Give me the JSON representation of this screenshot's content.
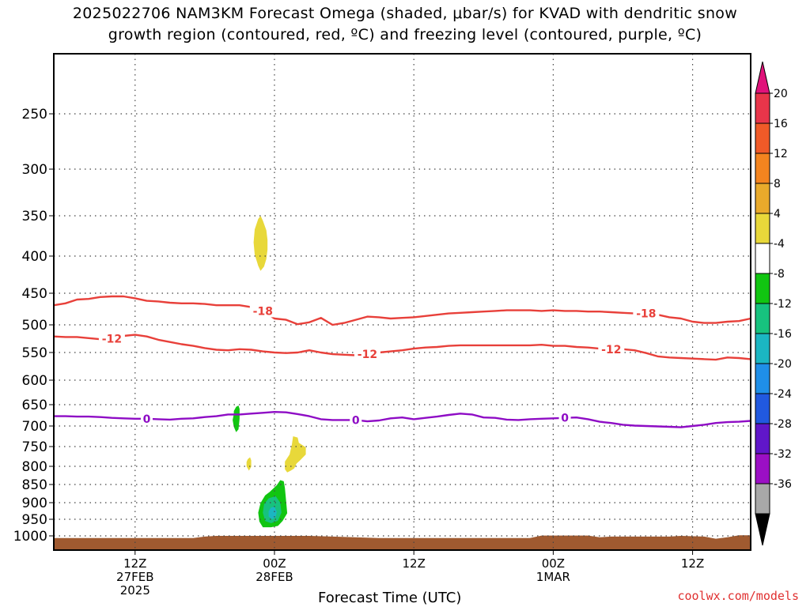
{
  "header": {
    "line1": "2025022706 NAM3KM Forecast Omega (shaded, μbar/s) for KVAD with dendritic snow",
    "line2": "growth region (contoured, red, ºC) and freezing level (contoured, purple, ºC)"
  },
  "credit": "coolwx.com/models",
  "chart_data": {
    "type": "contour",
    "title": "2025022706 NAM3KM Forecast Omega (shaded, μbar/s) for KVAD with dendritic snow growth region (contoured, red, ºC) and freezing level (contoured, purple, ºC)",
    "xlabel": "Forecast Time (UTC)",
    "ylabel": "",
    "x_unit": "hours after 2025-02-27 00Z",
    "xlim": [
      5,
      65
    ],
    "x_ticks": [
      {
        "x": 12,
        "label": [
          "12Z",
          "27FEB",
          "2025"
        ]
      },
      {
        "x": 24,
        "label": [
          "00Z",
          "28FEB"
        ]
      },
      {
        "x": 36,
        "label": [
          "12Z"
        ]
      },
      {
        "x": 48,
        "label": [
          "00Z",
          "1MAR"
        ]
      },
      {
        "x": 60,
        "label": [
          "12Z"
        ]
      }
    ],
    "y_ticks": [
      250,
      300,
      350,
      400,
      450,
      500,
      550,
      600,
      650,
      700,
      750,
      800,
      850,
      900,
      950,
      1000
    ],
    "ylim": [
      200,
      1020
    ],
    "y_unit": "hPa",
    "grid": true,
    "colorbar": {
      "levels": [
        20,
        16,
        12,
        8,
        4,
        -4,
        -8,
        -12,
        -16,
        -20,
        -24,
        -28,
        -32,
        -36
      ],
      "colors": [
        "#e8354a",
        "#f05a28",
        "#f4841f",
        "#e9aa2b",
        "#e8d83a",
        "#ffffff",
        "#11c511",
        "#17c27e",
        "#1bb6c2",
        "#1f8fe8",
        "#2159e0",
        "#6016c9",
        "#9b0fc4",
        "#a8a8a8"
      ],
      "top_arrow_color": "#e0127a",
      "bottom_arrow_color": "#000000"
    },
    "contours": [
      {
        "name": "-18",
        "color": "#e8403a",
        "label": "-18",
        "points": [
          [
            5,
            469
          ],
          [
            6,
            466
          ],
          [
            7,
            460
          ],
          [
            8,
            459
          ],
          [
            9,
            456
          ],
          [
            10,
            455
          ],
          [
            11,
            455
          ],
          [
            12,
            458
          ],
          [
            13,
            462
          ],
          [
            14,
            463
          ],
          [
            15,
            465
          ],
          [
            16,
            466
          ],
          [
            17,
            466
          ],
          [
            18,
            467
          ],
          [
            19,
            469
          ],
          [
            21,
            469
          ],
          [
            22,
            472
          ],
          [
            23,
            478
          ],
          [
            24,
            490
          ],
          [
            25,
            492
          ],
          [
            26,
            499
          ],
          [
            27,
            496
          ],
          [
            28,
            489
          ],
          [
            29,
            500
          ],
          [
            30,
            497
          ],
          [
            31,
            492
          ],
          [
            32,
            487
          ],
          [
            33,
            488
          ],
          [
            34,
            490
          ],
          [
            35,
            489
          ],
          [
            36,
            488
          ],
          [
            37,
            486
          ],
          [
            38,
            484
          ],
          [
            39,
            482
          ],
          [
            40,
            481
          ],
          [
            41,
            480
          ],
          [
            42,
            479
          ],
          [
            43,
            478
          ],
          [
            44,
            477
          ],
          [
            45,
            477
          ],
          [
            46,
            477
          ],
          [
            47,
            478
          ],
          [
            48,
            477
          ],
          [
            49,
            478
          ],
          [
            50,
            478
          ],
          [
            51,
            479
          ],
          [
            52,
            479
          ],
          [
            53,
            480
          ],
          [
            54,
            481
          ],
          [
            55,
            482
          ],
          [
            56,
            482
          ],
          [
            57,
            484
          ],
          [
            58,
            488
          ],
          [
            59,
            490
          ],
          [
            60,
            495
          ],
          [
            61,
            497
          ],
          [
            62,
            497
          ],
          [
            63,
            495
          ],
          [
            64,
            494
          ],
          [
            65,
            490
          ]
        ],
        "labels_at": [
          [
            23,
            478
          ],
          [
            56,
            482
          ]
        ]
      },
      {
        "name": "-12",
        "color": "#e8403a",
        "label": "-12",
        "points": [
          [
            5,
            521
          ],
          [
            6,
            522
          ],
          [
            7,
            522
          ],
          [
            8,
            524
          ],
          [
            9,
            526
          ],
          [
            10,
            525
          ],
          [
            11,
            520
          ],
          [
            12,
            518
          ],
          [
            13,
            521
          ],
          [
            14,
            527
          ],
          [
            15,
            531
          ],
          [
            16,
            535
          ],
          [
            17,
            538
          ],
          [
            18,
            542
          ],
          [
            19,
            545
          ],
          [
            20,
            546
          ],
          [
            21,
            544
          ],
          [
            22,
            545
          ],
          [
            23,
            548
          ],
          [
            24,
            550
          ],
          [
            25,
            551
          ],
          [
            26,
            550
          ],
          [
            27,
            546
          ],
          [
            28,
            550
          ],
          [
            29,
            553
          ],
          [
            30,
            554
          ],
          [
            31,
            555
          ],
          [
            32,
            553
          ],
          [
            33,
            550
          ],
          [
            34,
            548
          ],
          [
            35,
            546
          ],
          [
            36,
            543
          ],
          [
            37,
            541
          ],
          [
            38,
            540
          ],
          [
            39,
            538
          ],
          [
            40,
            537
          ],
          [
            41,
            537
          ],
          [
            42,
            537
          ],
          [
            43,
            537
          ],
          [
            44,
            537
          ],
          [
            45,
            537
          ],
          [
            46,
            537
          ],
          [
            47,
            536
          ],
          [
            48,
            538
          ],
          [
            49,
            538
          ],
          [
            50,
            540
          ],
          [
            51,
            541
          ],
          [
            52,
            543
          ],
          [
            53,
            544
          ],
          [
            54,
            544
          ],
          [
            55,
            546
          ],
          [
            56,
            551
          ],
          [
            57,
            557
          ],
          [
            58,
            559
          ],
          [
            59,
            560
          ],
          [
            60,
            561
          ],
          [
            61,
            562
          ],
          [
            62,
            563
          ],
          [
            63,
            559
          ],
          [
            64,
            560
          ],
          [
            65,
            562
          ]
        ],
        "labels_at": [
          [
            10,
            525
          ],
          [
            32,
            553
          ],
          [
            53,
            544
          ]
        ]
      },
      {
        "name": "0",
        "color": "#8e0cc5",
        "label": "0",
        "points": [
          [
            5,
            677
          ],
          [
            6,
            677
          ],
          [
            7,
            678
          ],
          [
            8,
            678
          ],
          [
            9,
            679
          ],
          [
            10,
            681
          ],
          [
            11,
            682
          ],
          [
            12,
            683
          ],
          [
            13,
            683
          ],
          [
            14,
            684
          ],
          [
            15,
            685
          ],
          [
            16,
            683
          ],
          [
            17,
            682
          ],
          [
            18,
            679
          ],
          [
            19,
            677
          ],
          [
            20,
            673
          ],
          [
            21,
            673
          ],
          [
            22,
            671
          ],
          [
            23,
            669
          ],
          [
            24,
            667
          ],
          [
            25,
            668
          ],
          [
            26,
            672
          ],
          [
            27,
            677
          ],
          [
            28,
            684
          ],
          [
            29,
            686
          ],
          [
            30,
            686
          ],
          [
            31,
            686
          ],
          [
            32,
            689
          ],
          [
            33,
            687
          ],
          [
            34,
            682
          ],
          [
            35,
            680
          ],
          [
            36,
            684
          ],
          [
            37,
            681
          ],
          [
            38,
            678
          ],
          [
            39,
            674
          ],
          [
            40,
            671
          ],
          [
            41,
            673
          ],
          [
            42,
            680
          ],
          [
            43,
            681
          ],
          [
            44,
            685
          ],
          [
            45,
            686
          ],
          [
            46,
            684
          ],
          [
            47,
            683
          ],
          [
            48,
            682
          ],
          [
            49,
            681
          ],
          [
            50,
            680
          ],
          [
            51,
            684
          ],
          [
            52,
            690
          ],
          [
            53,
            693
          ],
          [
            54,
            697
          ],
          [
            55,
            699
          ],
          [
            56,
            700
          ],
          [
            57,
            701
          ],
          [
            58,
            702
          ],
          [
            59,
            703
          ],
          [
            60,
            700
          ],
          [
            61,
            697
          ],
          [
            62,
            693
          ],
          [
            63,
            691
          ],
          [
            64,
            690
          ],
          [
            65,
            688
          ]
        ],
        "labels_at": [
          [
            13,
            683
          ],
          [
            31,
            686
          ],
          [
            49,
            681
          ]
        ]
      }
    ],
    "shaded_regions": [
      {
        "value": 4,
        "color": "#e8d83a",
        "points": [
          [
            22.3,
            367
          ],
          [
            22.6,
            354
          ],
          [
            22.8,
            350
          ],
          [
            23.0,
            356
          ],
          [
            23.3,
            368
          ],
          [
            23.4,
            380
          ],
          [
            23.4,
            392
          ],
          [
            23.3,
            404
          ],
          [
            23.1,
            414
          ],
          [
            22.8,
            420
          ],
          [
            22.6,
            413
          ],
          [
            22.3,
            398
          ],
          [
            22.2,
            383
          ]
        ]
      },
      {
        "value": -8,
        "color": "#11c511",
        "points": [
          [
            20.5,
            665
          ],
          [
            20.7,
            655
          ],
          [
            20.9,
            652
          ],
          [
            21.0,
            660
          ],
          [
            21.0,
            683
          ],
          [
            20.9,
            708
          ],
          [
            20.7,
            715
          ],
          [
            20.5,
            702
          ],
          [
            20.4,
            686
          ],
          [
            20.5,
            672
          ]
        ]
      },
      {
        "value": 4,
        "color": "#e8d83a",
        "points": [
          [
            21.7,
            782
          ],
          [
            21.9,
            777
          ],
          [
            22.0,
            785
          ],
          [
            22.0,
            801
          ],
          [
            21.8,
            812
          ],
          [
            21.6,
            800
          ],
          [
            21.6,
            789
          ]
        ]
      },
      {
        "value": 4,
        "color": "#e8d83a",
        "points": [
          [
            25.6,
            725
          ],
          [
            26.0,
            728
          ],
          [
            26.1,
            741
          ],
          [
            26.7,
            752
          ],
          [
            26.7,
            770
          ],
          [
            26.2,
            785
          ],
          [
            25.9,
            793
          ],
          [
            25.7,
            806
          ],
          [
            25.4,
            812
          ],
          [
            25.1,
            817
          ],
          [
            24.9,
            808
          ],
          [
            24.9,
            788
          ],
          [
            25.3,
            770
          ],
          [
            25.5,
            745
          ]
        ]
      },
      {
        "value": -8,
        "color": "#11c511",
        "points": [
          [
            24.2,
            852
          ],
          [
            24.5,
            838
          ],
          [
            24.8,
            841
          ],
          [
            24.9,
            860
          ],
          [
            25.0,
            895
          ],
          [
            25.1,
            932
          ],
          [
            24.7,
            955
          ],
          [
            24.3,
            970
          ],
          [
            23.7,
            974
          ],
          [
            23.0,
            974
          ],
          [
            22.7,
            957
          ],
          [
            22.6,
            930
          ],
          [
            22.8,
            901
          ],
          [
            23.2,
            880
          ],
          [
            23.6,
            870
          ]
        ]
      },
      {
        "value": -12,
        "color": "#17c27e",
        "points": [
          [
            23.5,
            888
          ],
          [
            24.1,
            882
          ],
          [
            24.5,
            900
          ],
          [
            24.6,
            930
          ],
          [
            24.3,
            954
          ],
          [
            23.7,
            962
          ],
          [
            23.2,
            955
          ],
          [
            23.0,
            930
          ],
          [
            23.1,
            905
          ]
        ]
      },
      {
        "value": -16,
        "color": "#1bb6c2",
        "points": [
          [
            23.7,
            915
          ],
          [
            24.0,
            912
          ],
          [
            24.2,
            928
          ],
          [
            24.1,
            944
          ],
          [
            23.8,
            950
          ],
          [
            23.5,
            942
          ],
          [
            23.5,
            926
          ]
        ]
      }
    ],
    "terrain": {
      "color": "#a05a30",
      "top_points": [
        [
          5,
          1003
        ],
        [
          17,
          1003
        ],
        [
          18,
          1001
        ],
        [
          19,
          1000
        ],
        [
          27,
          1000
        ],
        [
          29,
          1001
        ],
        [
          33,
          1003
        ],
        [
          46,
          1003
        ],
        [
          47,
          999
        ],
        [
          51,
          999
        ],
        [
          52,
          1002
        ],
        [
          53,
          1001
        ],
        [
          58,
          1001
        ],
        [
          59,
          1000
        ],
        [
          61,
          1001
        ],
        [
          62,
          1004
        ],
        [
          63,
          1002
        ],
        [
          64,
          998
        ],
        [
          65,
          998
        ]
      ]
    }
  }
}
